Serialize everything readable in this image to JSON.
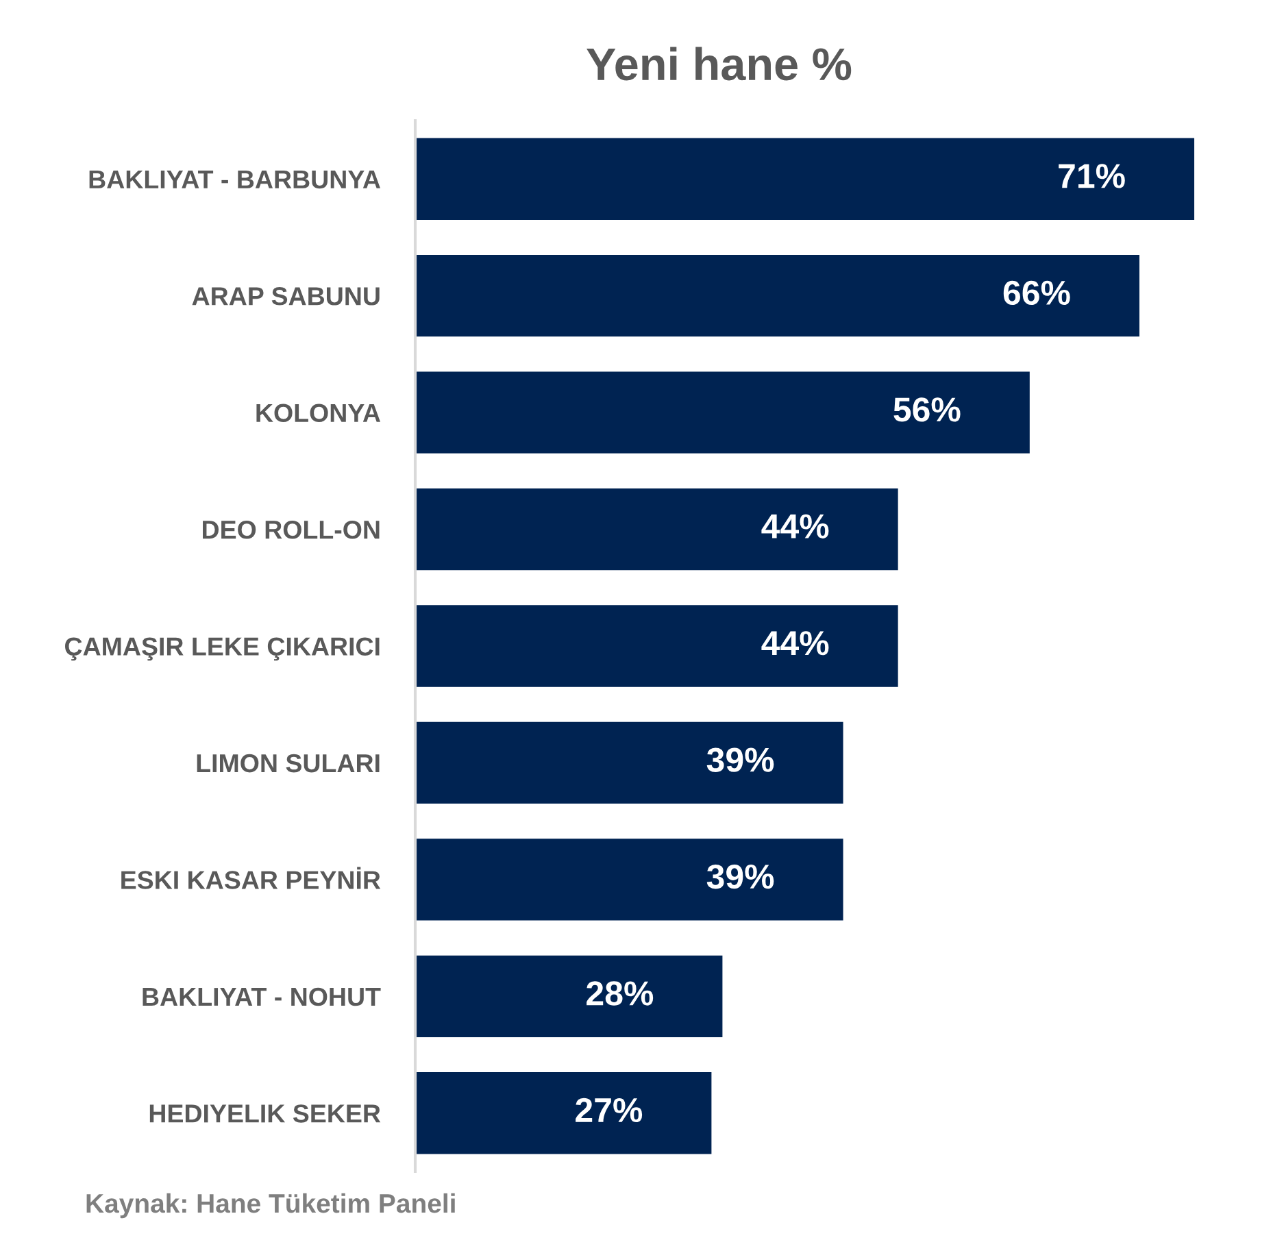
{
  "chart_data": {
    "type": "bar",
    "orientation": "horizontal",
    "title": "Yeni hane %",
    "categories": [
      "BAKLIYAT - BARBUNYA",
      "ARAP SABUNU",
      "KOLONYA",
      "DEO ROLL-ON",
      "ÇAMAŞIR LEKE ÇIKARICI",
      "LIMON SULARI",
      "ESKI KASAR PEYNİR",
      "BAKLIYAT - NOHUT",
      "HEDIYELIK SEKER"
    ],
    "values": [
      71,
      66,
      56,
      44,
      44,
      39,
      39,
      28,
      27
    ],
    "value_labels": [
      "71%",
      "66%",
      "56%",
      "44%",
      "44%",
      "39%",
      "39%",
      "28%",
      "27%"
    ],
    "color": "#002352",
    "grid": false,
    "legend": false,
    "annotations": [
      "Kaynak: Hane Tüketim Paneli"
    ]
  }
}
